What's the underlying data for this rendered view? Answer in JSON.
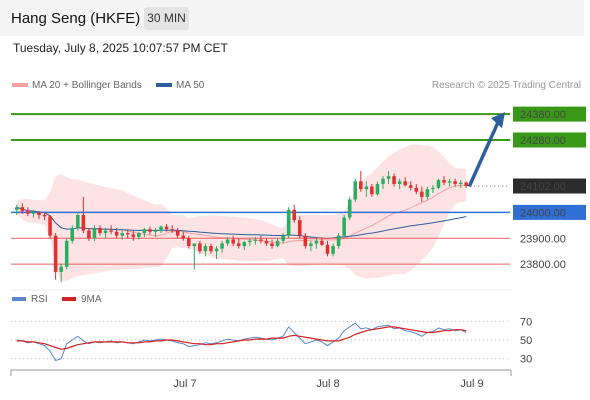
{
  "header": {
    "title": "Hang Seng (HKFE)",
    "timeframe": "30 MIN",
    "datetime": "Tuesday, July 8, 2025 10:07:57 PM CET",
    "credit": "Research © 2025 Trading Central"
  },
  "legend": {
    "bollinger": "MA 20 + Bollinger Bands",
    "ma50": "MA 50",
    "rsi": "RSI",
    "ma9": "9MA"
  },
  "colors": {
    "bull": "#27ae60",
    "bear": "#e03030",
    "band_fill": "#fde3e3",
    "ma20": "#f4a0a0",
    "ma50": "#2d5f9e",
    "support_blue": "#2f6fd6",
    "target_green": "#3a9a18",
    "red_level": "#e86060",
    "arrow": "#2d5f9e",
    "rsi": "#5a86d0",
    "rsi_ma": "#d42020"
  },
  "chart_data": [
    {
      "type": "candlestick",
      "y_range": [
        23700,
        24450
      ],
      "x_ticks": [
        "Jul 7",
        "Jul 8",
        "Jul 9"
      ],
      "levels": [
        {
          "value": 24380.0,
          "label": "24380.00",
          "style": "target"
        },
        {
          "value": 24280.0,
          "label": "24280.00",
          "style": "target"
        },
        {
          "value": 24102.0,
          "label": "24102.00",
          "style": "last"
        },
        {
          "value": 24000.0,
          "label": "24000.00",
          "style": "pivot"
        },
        {
          "value": 23900.0,
          "label": "23900.00",
          "style": "resistance"
        },
        {
          "value": 23800.0,
          "label": "23800.00",
          "style": "resistance"
        }
      ],
      "last_price": 24102.0,
      "forecast_arrow": {
        "from": 24100,
        "to": 24380
      },
      "candles": [
        [
          24010,
          24030,
          23990,
          24020
        ],
        [
          24020,
          24035,
          23995,
          24005
        ],
        [
          24005,
          24020,
          23985,
          23995
        ],
        [
          23995,
          24010,
          23980,
          24000
        ],
        [
          24000,
          24005,
          23975,
          23990
        ],
        [
          23990,
          24000,
          23970,
          23985
        ],
        [
          23985,
          23990,
          23900,
          23910
        ],
        [
          23910,
          23920,
          23740,
          23770
        ],
        [
          23770,
          23800,
          23730,
          23790
        ],
        [
          23790,
          23900,
          23780,
          23890
        ],
        [
          23890,
          23950,
          23880,
          23940
        ],
        [
          23940,
          24000,
          23930,
          23990
        ],
        [
          23990,
          24060,
          23920,
          23930
        ],
        [
          23930,
          23940,
          23890,
          23900
        ],
        [
          23900,
          23950,
          23890,
          23940
        ],
        [
          23940,
          23950,
          23910,
          23920
        ],
        [
          23920,
          23940,
          23900,
          23930
        ],
        [
          23930,
          23950,
          23915,
          23925
        ],
        [
          23925,
          23940,
          23900,
          23910
        ],
        [
          23910,
          23930,
          23895,
          23920
        ],
        [
          23920,
          23935,
          23900,
          23915
        ],
        [
          23915,
          23930,
          23890,
          23905
        ],
        [
          23905,
          23925,
          23895,
          23920
        ],
        [
          23920,
          23940,
          23905,
          23935
        ],
        [
          23935,
          23945,
          23915,
          23925
        ],
        [
          23925,
          23940,
          23905,
          23930
        ],
        [
          23930,
          23950,
          23920,
          23945
        ],
        [
          23945,
          23955,
          23925,
          23935
        ],
        [
          23935,
          23950,
          23920,
          23930
        ],
        [
          23930,
          23940,
          23900,
          23910
        ],
        [
          23910,
          23925,
          23890,
          23900
        ],
        [
          23900,
          23910,
          23860,
          23870
        ],
        [
          23870,
          23880,
          23780,
          23880
        ],
        [
          23880,
          23890,
          23840,
          23850
        ],
        [
          23850,
          23880,
          23830,
          23870
        ],
        [
          23870,
          23880,
          23840,
          23850
        ],
        [
          23850,
          23870,
          23820,
          23860
        ],
        [
          23860,
          23890,
          23845,
          23880
        ],
        [
          23880,
          23905,
          23870,
          23895
        ],
        [
          23895,
          23910,
          23870,
          23880
        ],
        [
          23880,
          23900,
          23860,
          23870
        ],
        [
          23870,
          23890,
          23855,
          23885
        ],
        [
          23885,
          23900,
          23870,
          23890
        ],
        [
          23890,
          23905,
          23875,
          23895
        ],
        [
          23895,
          23910,
          23880,
          23890
        ],
        [
          23890,
          23900,
          23870,
          23880
        ],
        [
          23880,
          23895,
          23860,
          23870
        ],
        [
          23870,
          23900,
          23865,
          23890
        ],
        [
          23890,
          23920,
          23880,
          23910
        ],
        [
          23910,
          24020,
          23900,
          24010
        ],
        [
          24010,
          24030,
          23960,
          23970
        ],
        [
          23970,
          23985,
          23900,
          23910
        ],
        [
          23910,
          23920,
          23860,
          23870
        ],
        [
          23870,
          23890,
          23850,
          23880
        ],
        [
          23880,
          23900,
          23860,
          23890
        ],
        [
          23890,
          23905,
          23870,
          23875
        ],
        [
          23875,
          23890,
          23830,
          23840
        ],
        [
          23840,
          23880,
          23830,
          23870
        ],
        [
          23870,
          23920,
          23860,
          23910
        ],
        [
          23910,
          23990,
          23900,
          23980
        ],
        [
          23980,
          24060,
          23970,
          24050
        ],
        [
          24050,
          24130,
          24040,
          24120
        ],
        [
          24120,
          24160,
          24080,
          24090
        ],
        [
          24090,
          24120,
          24060,
          24100
        ],
        [
          24100,
          24110,
          24060,
          24070
        ],
        [
          24070,
          24120,
          24065,
          24110
        ],
        [
          24110,
          24140,
          24090,
          24130
        ],
        [
          24130,
          24160,
          24110,
          24140
        ],
        [
          24140,
          24150,
          24100,
          24110
        ],
        [
          24110,
          24130,
          24090,
          24120
        ],
        [
          24120,
          24135,
          24100,
          24105
        ],
        [
          24105,
          24120,
          24085,
          24095
        ],
        [
          24095,
          24110,
          24070,
          24080
        ],
        [
          24080,
          24100,
          24040,
          24060
        ],
        [
          24060,
          24100,
          24050,
          24090
        ],
        [
          24090,
          24105,
          24075,
          24095
        ],
        [
          24095,
          24130,
          24090,
          24125
        ],
        [
          24125,
          24140,
          24105,
          24115
        ],
        [
          24115,
          24130,
          24100,
          24120
        ],
        [
          24120,
          24130,
          24100,
          24110
        ],
        [
          24110,
          24125,
          24095,
          24115
        ],
        [
          24115,
          24120,
          24095,
          24102
        ]
      ]
    },
    {
      "type": "line",
      "y_ticks": [
        70,
        50,
        30
      ],
      "y_range": [
        20,
        80
      ],
      "series": [
        {
          "name": "RSI",
          "values": [
            50,
            49,
            47,
            48,
            46,
            44,
            38,
            28,
            30,
            46,
            50,
            54,
            49,
            46,
            48,
            47,
            48,
            49,
            47,
            48,
            47,
            46,
            48,
            50,
            49,
            50,
            51,
            50,
            49,
            47,
            46,
            43,
            44,
            45,
            47,
            46,
            47,
            49,
            51,
            50,
            49,
            51,
            52,
            53,
            52,
            51,
            50,
            52,
            54,
            64,
            58,
            52,
            46,
            48,
            50,
            48,
            44,
            48,
            52,
            60,
            64,
            68,
            62,
            63,
            61,
            64,
            65,
            66,
            62,
            63,
            60,
            59,
            57,
            54,
            58,
            59,
            63,
            61,
            62,
            60,
            61,
            58
          ]
        },
        {
          "name": "9MA",
          "values": [
            49,
            49,
            48,
            48,
            47,
            46,
            44,
            42,
            40,
            41,
            43,
            45,
            46,
            47,
            48,
            48,
            48,
            48,
            48,
            48,
            47,
            47,
            47,
            48,
            48,
            49,
            49,
            50,
            50,
            49,
            48,
            47,
            46,
            46,
            45,
            45,
            46,
            46,
            47,
            48,
            49,
            50,
            50,
            51,
            51,
            51,
            52,
            52,
            52,
            54,
            55,
            54,
            53,
            52,
            51,
            50,
            49,
            49,
            49,
            51,
            53,
            56,
            58,
            60,
            61,
            62,
            63,
            64,
            64,
            63,
            62,
            61,
            60,
            59,
            58,
            58,
            59,
            60,
            60,
            61,
            61,
            60
          ]
        }
      ]
    }
  ]
}
